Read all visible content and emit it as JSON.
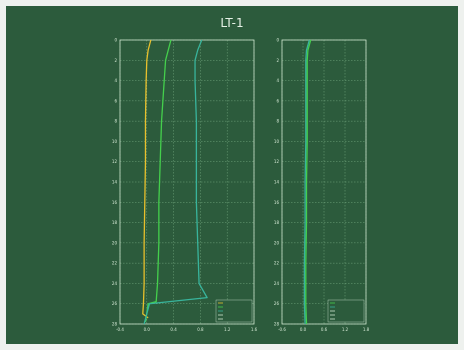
{
  "chart_data": {
    "title": "LT-1",
    "panels": [
      {
        "type": "line",
        "ylabel": "",
        "xlabel": "",
        "xlim": [
          -0.4,
          1.6
        ],
        "xticks": [
          "-0.4",
          "0.0",
          "0.4",
          "0.8",
          "1.2",
          "1.6"
        ],
        "ylim": [
          0,
          28
        ],
        "yticks": [
          "0",
          "2",
          "4",
          "6",
          "8",
          "10",
          "12",
          "14",
          "16",
          "18",
          "20",
          "22",
          "24",
          "26",
          "28"
        ],
        "legend_position": "bottom-right",
        "legend_entries": [
          "",
          "",
          "",
          "",
          ""
        ],
        "series": [
          {
            "color": "#e8c02c",
            "points": [
              [
                0.06,
                0
              ],
              [
                0.02,
                1
              ],
              [
                0.0,
                2
              ],
              [
                -0.01,
                4
              ],
              [
                -0.02,
                8
              ],
              [
                -0.02,
                12
              ],
              [
                -0.03,
                16
              ],
              [
                -0.04,
                20
              ],
              [
                -0.04,
                24
              ],
              [
                -0.05,
                26
              ],
              [
                -0.06,
                27
              ],
              [
                0.02,
                27.4
              ]
            ]
          },
          {
            "color": "#44d04c",
            "points": [
              [
                0.36,
                0
              ],
              [
                0.32,
                1
              ],
              [
                0.28,
                2
              ],
              [
                0.26,
                4
              ],
              [
                0.22,
                8
              ],
              [
                0.2,
                12
              ],
              [
                0.18,
                16
              ],
              [
                0.18,
                20
              ],
              [
                0.16,
                24
              ],
              [
                0.14,
                25.8
              ],
              [
                0.02,
                26
              ],
              [
                -0.02,
                27.8
              ]
            ]
          },
          {
            "color": "#38b49c",
            "points": [
              [
                0.82,
                0
              ],
              [
                0.76,
                1
              ],
              [
                0.72,
                2
              ],
              [
                0.72,
                4
              ],
              [
                0.74,
                8
              ],
              [
                0.74,
                12
              ],
              [
                0.74,
                16
              ],
              [
                0.76,
                20
              ],
              [
                0.78,
                24
              ],
              [
                0.9,
                25.4
              ],
              [
                0.04,
                26
              ],
              [
                -0.04,
                28
              ]
            ]
          }
        ]
      },
      {
        "type": "line",
        "ylabel": "",
        "xlabel": "",
        "xlim": [
          -0.6,
          1.8
        ],
        "xticks": [
          "-0.6",
          "0.0",
          "0.6",
          "1.2",
          "1.8"
        ],
        "ylim": [
          0,
          28
        ],
        "yticks": [
          "0",
          "2",
          "4",
          "6",
          "8",
          "10",
          "12",
          "14",
          "16",
          "18",
          "20",
          "22",
          "24",
          "26",
          "28"
        ],
        "legend_position": "bottom-right",
        "legend_entries": [
          "",
          "",
          "",
          "",
          ""
        ],
        "series": [
          {
            "color": "#44d04c",
            "points": [
              [
                0.22,
                0
              ],
              [
                0.14,
                1
              ],
              [
                0.12,
                2
              ],
              [
                0.12,
                6
              ],
              [
                0.12,
                10
              ],
              [
                0.1,
                14
              ],
              [
                0.1,
                18
              ],
              [
                0.08,
                22
              ],
              [
                0.08,
                26
              ],
              [
                0.1,
                28
              ]
            ]
          },
          {
            "color": "#38b49c",
            "points": [
              [
                0.18,
                0
              ],
              [
                0.1,
                1
              ],
              [
                0.08,
                2
              ],
              [
                0.08,
                6
              ],
              [
                0.08,
                10
              ],
              [
                0.06,
                14
              ],
              [
                0.06,
                18
              ],
              [
                0.04,
                22
              ],
              [
                0.04,
                26
              ],
              [
                0.06,
                28
              ]
            ]
          }
        ]
      }
    ]
  }
}
